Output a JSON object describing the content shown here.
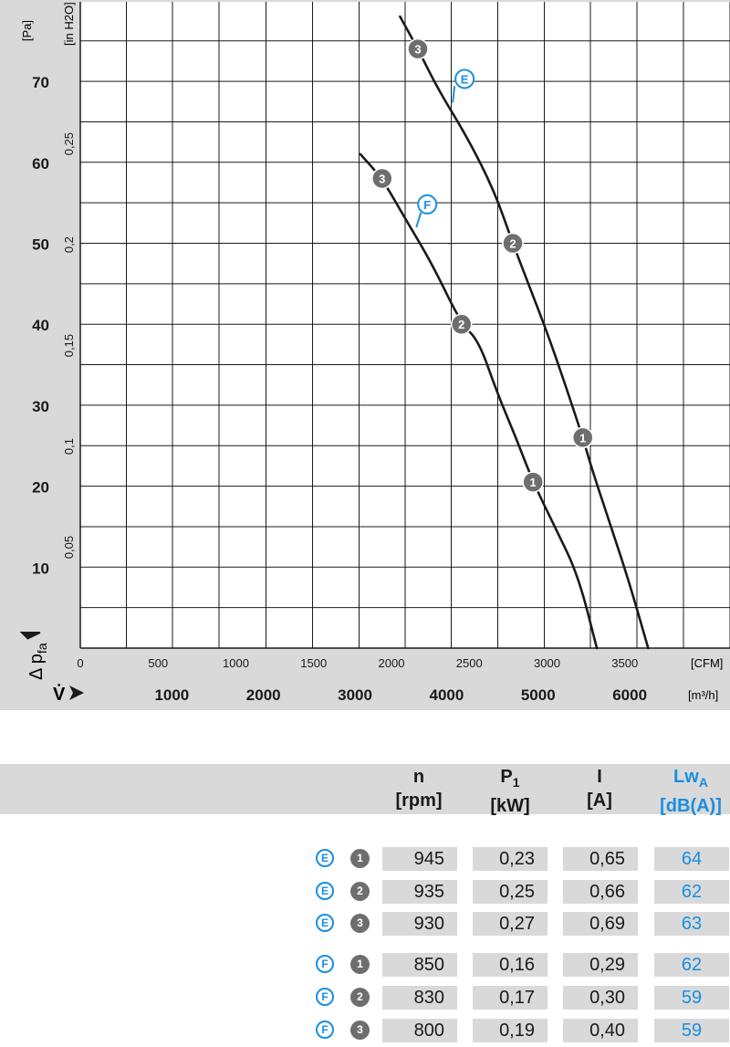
{
  "chart_data": {
    "type": "line",
    "x_unit_cfm": "[CFM]",
    "x_unit_m3h": "[m³/h]",
    "y_unit_pa": "[Pa]",
    "y_unit_inh2o": "[in H2O]",
    "y_axis_symbol": "Δ p",
    "y_axis_subscript": "fa",
    "x_axis_symbol": "V̇",
    "x_cfm_ticks": [
      "0",
      "500",
      "1000",
      "1500",
      "2000",
      "2500",
      "3000",
      "3500"
    ],
    "x_m3h_ticks": [
      "1000",
      "2000",
      "3000",
      "4000",
      "5000",
      "6000"
    ],
    "y_pa_ticks": [
      "10",
      "20",
      "30",
      "40",
      "50",
      "60",
      "70"
    ],
    "y_inh2o_ticks": [
      "0,05",
      "0,1",
      "0,15",
      "0,2",
      "0,25"
    ],
    "xlim_cfm": [
      0,
      4180
    ],
    "ylim_pa": [
      0,
      80
    ],
    "grid": true,
    "series": [
      {
        "name": "E",
        "points_cfm_pa": [
          [
            2055,
            78
          ],
          [
            2170,
            74
          ],
          [
            2300,
            69
          ],
          [
            2490,
            63
          ],
          [
            2660,
            56.5
          ],
          [
            2780,
            50
          ],
          [
            2880,
            45
          ],
          [
            3000,
            39
          ],
          [
            3100,
            33.5
          ],
          [
            3230,
            26
          ],
          [
            3290,
            22
          ],
          [
            3420,
            14.5
          ],
          [
            3530,
            8
          ],
          [
            3650,
            0
          ]
        ],
        "markers": [
          {
            "label": "3",
            "x": 2170,
            "y": 74
          },
          {
            "label": "2",
            "x": 2780,
            "y": 50
          },
          {
            "label": "1",
            "x": 3230,
            "y": 26
          }
        ]
      },
      {
        "name": "F",
        "points_cfm_pa": [
          [
            1800,
            61
          ],
          [
            1940,
            58
          ],
          [
            2090,
            53
          ],
          [
            2260,
            47.5
          ],
          [
            2450,
            40
          ],
          [
            2560,
            38
          ],
          [
            2680,
            31.5
          ],
          [
            2800,
            26
          ],
          [
            2910,
            20.5
          ],
          [
            3050,
            15
          ],
          [
            3200,
            9
          ],
          [
            3320,
            0
          ]
        ],
        "markers": [
          {
            "label": "3",
            "x": 1940,
            "y": 58
          },
          {
            "label": "2",
            "x": 2450,
            "y": 40
          },
          {
            "label": "1",
            "x": 2910,
            "y": 20.5
          }
        ]
      }
    ],
    "annotations": [
      {
        "label": "E",
        "x": 2470,
        "y": 70.3
      },
      {
        "label": "F",
        "x": 2230,
        "y": 54.8
      }
    ]
  },
  "table": {
    "headers": [
      {
        "line1": "n",
        "line2": "[rpm]"
      },
      {
        "line1": "P",
        "sub": "1",
        "line2": "[kW]"
      },
      {
        "line1": "I",
        "line2": "[A]"
      },
      {
        "line1": "Lw",
        "sub": "A",
        "line2": "[dB(A)]"
      }
    ],
    "rows": [
      {
        "curve": "E",
        "point": "1",
        "n": "945",
        "p1": "0,23",
        "i": "0,65",
        "lwa": "64"
      },
      {
        "curve": "E",
        "point": "2",
        "n": "935",
        "p1": "0,25",
        "i": "0,66",
        "lwa": "62"
      },
      {
        "curve": "E",
        "point": "3",
        "n": "930",
        "p1": "0,27",
        "i": "0,69",
        "lwa": "63"
      },
      {
        "curve": "F",
        "point": "1",
        "n": "850",
        "p1": "0,16",
        "i": "0,29",
        "lwa": "62"
      },
      {
        "curve": "F",
        "point": "2",
        "n": "830",
        "p1": "0,17",
        "i": "0,30",
        "lwa": "59"
      },
      {
        "curve": "F",
        "point": "3",
        "n": "800",
        "p1": "0,19",
        "i": "0,40",
        "lwa": "59"
      }
    ]
  },
  "colors": {
    "accent": "#1a8ee0",
    "panel": "#d9d9d9",
    "marker": "#6e6e6e",
    "curve": "#1a1a1a"
  }
}
